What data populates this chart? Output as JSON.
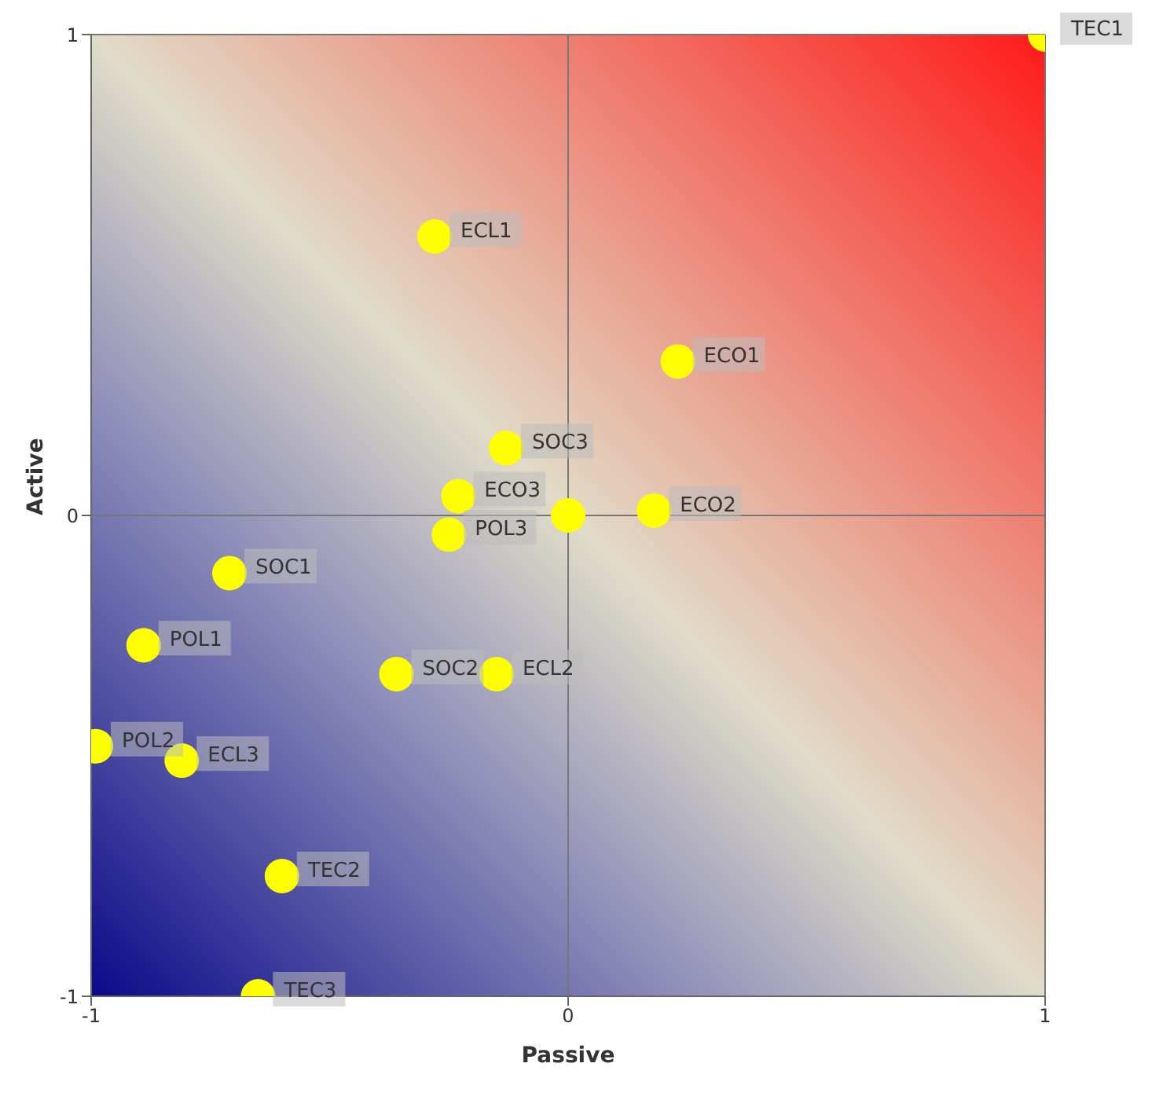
{
  "chart_data": {
    "type": "scatter",
    "xlabel": "Passive",
    "ylabel": "Active",
    "x": [
      1.0,
      -0.28,
      0.23,
      -0.13,
      -0.23,
      0.18,
      -0.25,
      0,
      -0.71,
      -0.89,
      -0.36,
      -0.15,
      -0.99,
      -0.81,
      -0.6,
      -0.65
    ],
    "series": [
      {
        "color": "#ffff00",
        "values": [
          1.0,
          0.58,
          0.32,
          0.14,
          0.04,
          0.01,
          -0.04,
          0,
          -0.12,
          -0.27,
          -0.33,
          -0.33,
          -0.48,
          -0.51,
          -0.75,
          -1.0
        ],
        "value_labels": [
          "TEC1",
          "ECL1",
          "ECO1",
          "SOC3",
          "ECO3",
          "ECO2",
          "POL3",
          null,
          "SOC1",
          "POL1",
          "SOC2",
          "ECL2",
          "POL2",
          "ECL3",
          "TEC2",
          "TEC3"
        ]
      }
    ],
    "xlim": [
      -1,
      1
    ],
    "ylim": [
      -1,
      1
    ],
    "xticks": [
      -1,
      0,
      1
    ],
    "yticks": [
      -1,
      0,
      1
    ],
    "grid": true,
    "marker": "circle",
    "legend": false
  }
}
